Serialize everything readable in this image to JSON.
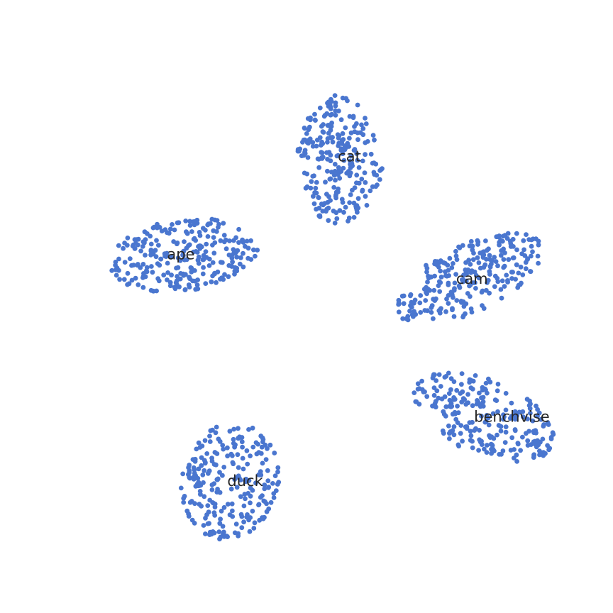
{
  "chart_data": {
    "type": "scatter",
    "title": "",
    "xlabel": "",
    "ylabel": "",
    "axes_visible": false,
    "grid": false,
    "xlim": [
      -50,
      50
    ],
    "ylim": [
      -50,
      50
    ],
    "marker_color": "#4a76cf",
    "label_color": "#262626",
    "background_color": "#ffffff",
    "clusters": [
      {
        "label": "cat",
        "label_x": 7.0,
        "label_y": 24.5,
        "center": [
          5.0,
          24.0
        ],
        "spread": [
          6.5,
          10.5
        ],
        "shape": "tall-blob",
        "count": 260,
        "seed": 11
      },
      {
        "label": "ape",
        "label_x": -20.5,
        "label_y": 8.5,
        "center": [
          -20.0,
          8.5
        ],
        "spread": [
          12.0,
          6.0
        ],
        "shape": "wide-blob",
        "count": 260,
        "seed": 23
      },
      {
        "label": "cam",
        "label_x": 27.0,
        "label_y": 4.5,
        "center": [
          26.5,
          4.5
        ],
        "spread": [
          12.0,
          6.0
        ],
        "shape": "tilted-blob",
        "count": 260,
        "seed": 37
      },
      {
        "label": "benchvise",
        "label_x": 33.5,
        "label_y": -18.0,
        "center": [
          29.0,
          -18.0
        ],
        "spread": [
          11.5,
          6.5
        ],
        "shape": "tilted-blob-down",
        "count": 240,
        "seed": 41
      },
      {
        "label": "duck",
        "label_x": -10.0,
        "label_y": -28.5,
        "center": [
          -12.5,
          -28.5
        ],
        "spread": [
          8.0,
          9.5
        ],
        "shape": "round-blob",
        "count": 240,
        "seed": 53
      }
    ]
  }
}
